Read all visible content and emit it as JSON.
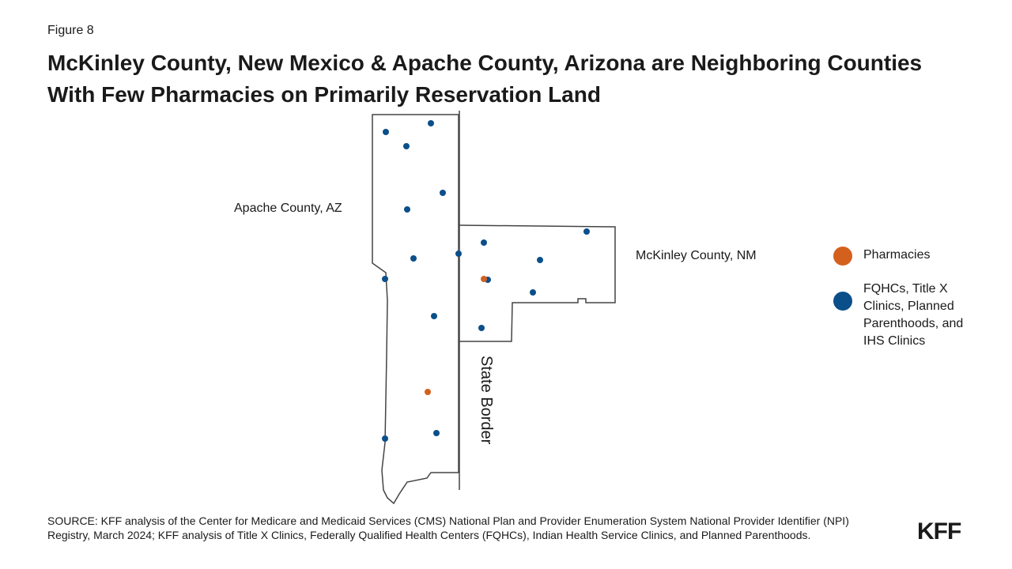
{
  "figure_label": "Figure 8",
  "title": "McKinley County, New Mexico & Apache County, Arizona are Neighboring Counties With Few Pharmacies on Primarily Reservation Land",
  "map": {
    "labels": {
      "apache": "Apache County, AZ",
      "mckinley": "McKinley County, NM",
      "border": "State Border"
    }
  },
  "legend": {
    "items": [
      {
        "label": "Pharmacies",
        "color": "#d4601e"
      },
      {
        "label": "FQHCs, Title X Clinics, Planned Parenthoods, and IHS Clinics",
        "color": "#0b4f8a"
      }
    ]
  },
  "source": "SOURCE: KFF analysis of the Center for Medicare and Medicaid Services (CMS) National Plan and Provider Enumeration System National Provider Identifier (NPI) Registry, March 2024; KFF analysis of Title X Clinics, Federally Qualified Health Centers (FQHCs), Indian Health Service Clinics, and Planned Parenthoods.",
  "logo": "KFF"
}
